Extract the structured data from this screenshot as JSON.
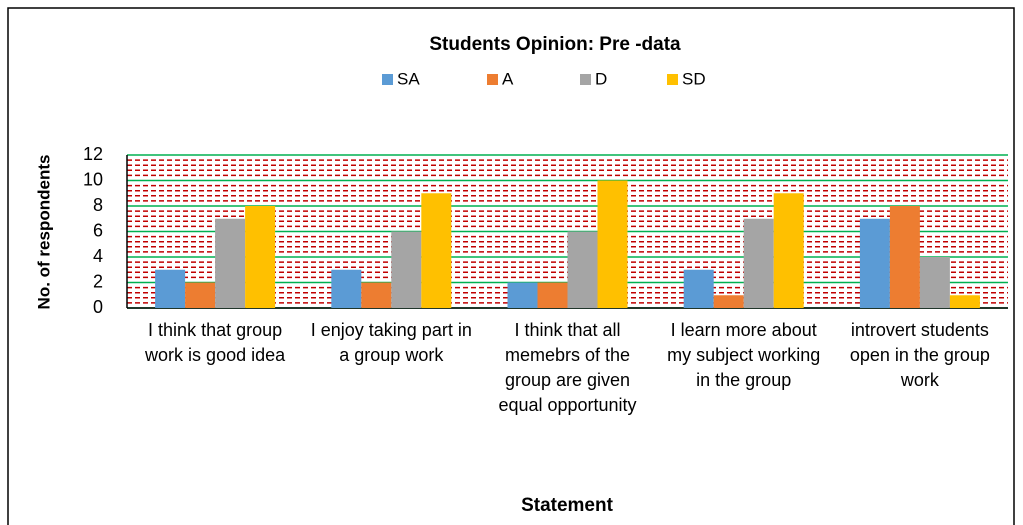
{
  "chart_data": {
    "type": "bar",
    "title": "Students Opinion: Pre -data",
    "x_label": "Statement",
    "y_label": "No. of respondents",
    "categories": [
      "I think that group work is good idea",
      "I enjoy taking part in a group work",
      "I think that all memebrs of the group are given equal opportunity",
      "I learn more about my subject working in the group",
      "introvert students open in the group work"
    ],
    "series": [
      {
        "name": "SA",
        "color": "#5b9bd5",
        "values": [
          3,
          3,
          2,
          3,
          7
        ]
      },
      {
        "name": "A",
        "color": "#ed7d31",
        "values": [
          2,
          2,
          2,
          1,
          8
        ]
      },
      {
        "name": "D",
        "color": "#a5a5a5",
        "values": [
          7,
          6,
          6,
          7,
          4
        ]
      },
      {
        "name": "SD",
        "color": "#ffc000",
        "values": [
          8,
          9,
          10,
          9,
          1
        ]
      }
    ],
    "ylim": [
      0,
      12
    ],
    "yticks": [
      0,
      2,
      4,
      6,
      8,
      10,
      12
    ],
    "grid": true,
    "legend": "top"
  }
}
